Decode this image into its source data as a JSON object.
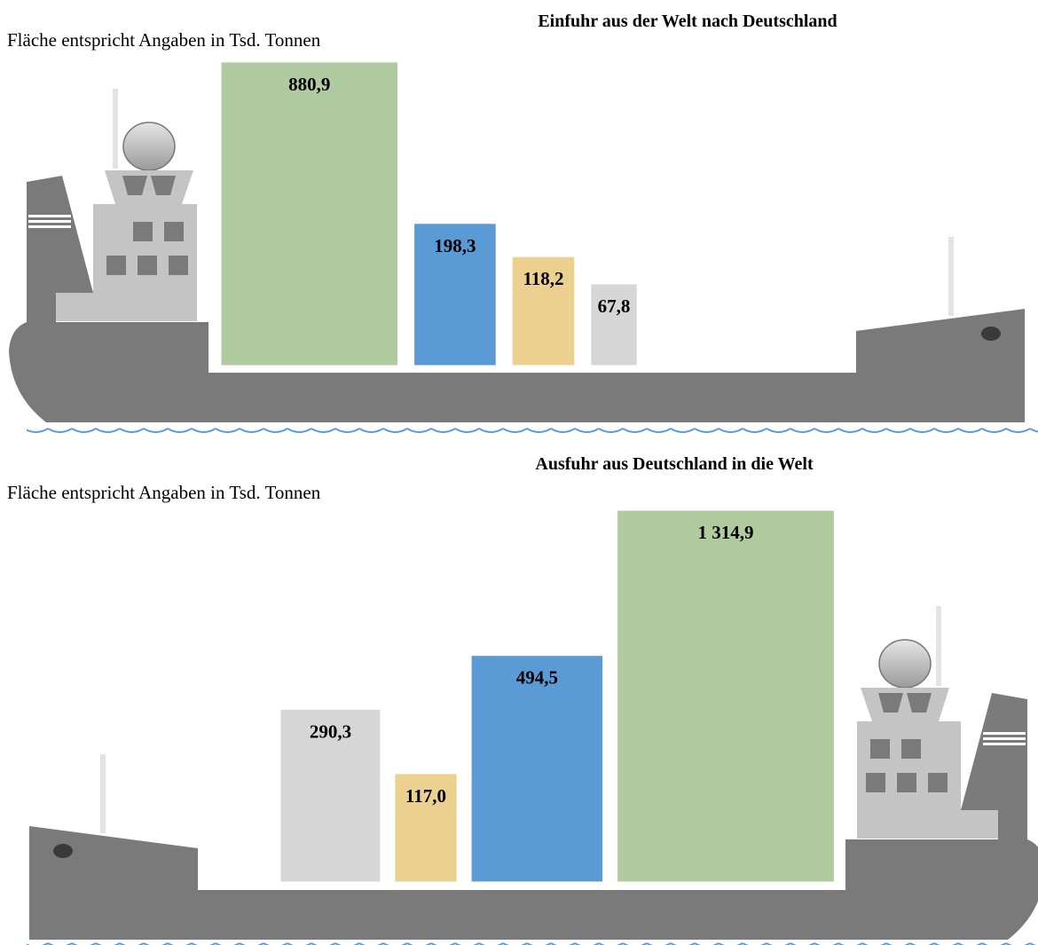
{
  "chart_data": [
    {
      "type": "area",
      "title": "Einfuhr  aus der  Welt nach Deutschland",
      "subtitle": "Fläche entspricht Angaben in Tsd. Tonnen",
      "values": [
        880.9,
        198.3,
        118.2,
        67.8
      ],
      "value_labels": [
        "880,9",
        "198,3",
        "118,2",
        "67,8"
      ],
      "colors": [
        "#b0cba0",
        "#5b9bd5",
        "#ecd08f",
        "#d6d6d6"
      ]
    },
    {
      "type": "area",
      "title": "Ausfuhr  aus Deutschland  in die  Welt",
      "subtitle": "Fläche entspricht Angaben in Tsd. Tonnen",
      "values": [
        290.3,
        117.0,
        494.5,
        1314.9
      ],
      "value_labels": [
        "290,3",
        "117,0",
        "494,5",
        "1 314,9"
      ],
      "colors": [
        "#d6d6d6",
        "#ecd08f",
        "#5b9bd5",
        "#b0cba0"
      ]
    }
  ]
}
